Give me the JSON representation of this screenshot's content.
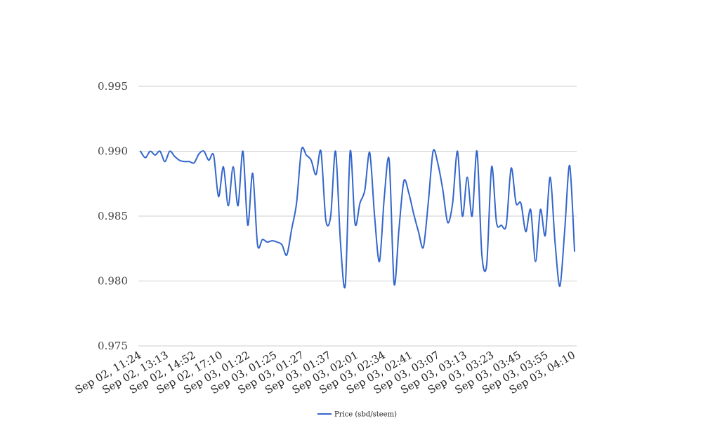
{
  "chart_data": {
    "type": "line",
    "title": "",
    "xlabel": "",
    "ylabel": "",
    "ylim": [
      0.975,
      0.995
    ],
    "yticks": [
      "0.995",
      "0.990",
      "0.985",
      "0.980",
      "0.975"
    ],
    "grid": true,
    "legend_position": "bottom-center",
    "x_tick_labels": [
      "Sep 02, 11:24",
      "Sep 02, 13:13",
      "Sep 02, 14:52",
      "Sep 02, 17:10",
      "Sep 03, 01:22",
      "Sep 03, 01:25",
      "Sep 03, 01:27",
      "Sep 03, 01:37",
      "Sep 03, 02:01",
      "Sep 03, 02:34",
      "Sep 03, 02:41",
      "Sep 03, 03:07",
      "Sep 03, 03:13",
      "Sep 03, 03:23",
      "Sep 03, 03:45",
      "Sep 03, 03:55",
      "Sep 03, 04:10"
    ],
    "series": [
      {
        "name": "Price (sbd/steem)",
        "color": "#3366cc",
        "values": [
          0.99,
          0.9895,
          0.99,
          0.9897,
          0.99,
          0.9892,
          0.99,
          0.9896,
          0.9893,
          0.9892,
          0.9892,
          0.9891,
          0.9898,
          0.99,
          0.9893,
          0.9897,
          0.9865,
          0.9888,
          0.9858,
          0.9888,
          0.9858,
          0.99,
          0.9843,
          0.9883,
          0.9828,
          0.9832,
          0.983,
          0.9831,
          0.983,
          0.9828,
          0.982,
          0.984,
          0.986,
          0.9901,
          0.9897,
          0.9893,
          0.9882,
          0.99,
          0.9847,
          0.985,
          0.99,
          0.983,
          0.9797,
          0.99,
          0.9844,
          0.986,
          0.987,
          0.9899,
          0.985,
          0.9815,
          0.9865,
          0.9893,
          0.9798,
          0.984,
          0.9877,
          0.9868,
          0.9852,
          0.9838,
          0.9826,
          0.986,
          0.99,
          0.989,
          0.987,
          0.9845,
          0.986,
          0.99,
          0.985,
          0.988,
          0.985,
          0.99,
          0.982,
          0.9813,
          0.9888,
          0.9845,
          0.9843,
          0.9843,
          0.9887,
          0.986,
          0.986,
          0.9838,
          0.9855,
          0.9815,
          0.9855,
          0.9835,
          0.988,
          0.983,
          0.9796,
          0.984,
          0.9889,
          0.9823
        ]
      }
    ]
  }
}
